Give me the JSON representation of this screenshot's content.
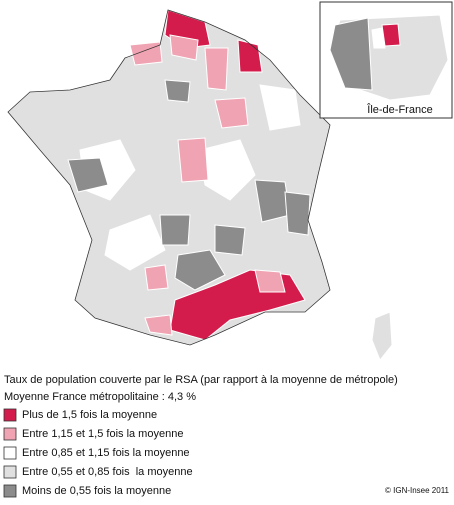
{
  "inset_label": "Île-de-France",
  "legend": {
    "title": "Taux de population couverte par le RSA (par rapport à la moyenne de métropole)",
    "subtitle": "Moyenne France métropolitaine : 4,3 %",
    "items": [
      {
        "label": "Plus de 1,5 fois la moyenne",
        "color": "#d41c4c"
      },
      {
        "label": "Entre 1,15 et 1,5 fois la moyenne",
        "color": "#f0a3b2"
      },
      {
        "label": "Entre 0,85 et 1,15 fois la moyenne",
        "color": "#ffffff"
      },
      {
        "label": "Entre 0,55 et 0,85 fois  la moyenne",
        "color": "#e0e0e0"
      },
      {
        "label": "Moins de 0,55 fois la moyenne",
        "color": "#8c8c8c"
      }
    ]
  },
  "credit": "© IGN-Insee 2011"
}
